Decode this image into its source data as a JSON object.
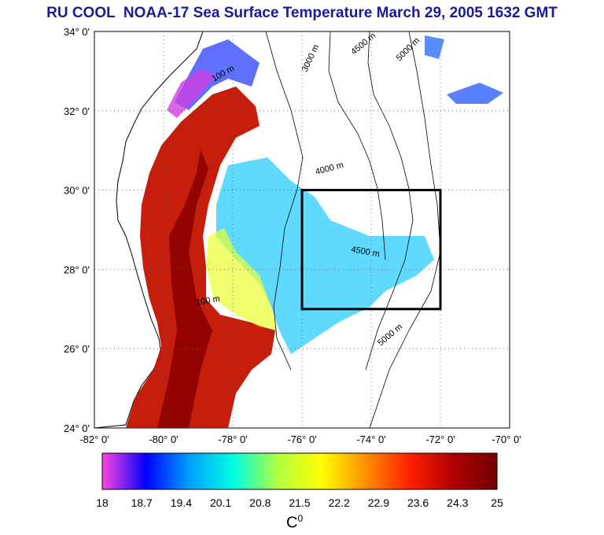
{
  "title": "RU COOL  NOAA-17 Sea Surface Temperature March 29, 2005 1632 GMT",
  "lat_ticks": [
    "34° 0'",
    "32° 0'",
    "30° 0'",
    "28° 0'",
    "26° 0'",
    "24° 0'"
  ],
  "lon_ticks": [
    "-82° 0'",
    "-80° 0'",
    "-78° 0'",
    "-76° 0'",
    "-74° 0'",
    "-72° 0'",
    "-70° 0'"
  ],
  "extent": {
    "lon": [
      -82,
      -70
    ],
    "lat": [
      24,
      34
    ]
  },
  "study_box": {
    "lon": [
      -76,
      -72
    ],
    "lat": [
      27,
      30
    ]
  },
  "contour_labels": [
    "100 m",
    "3000 m",
    "4000 m",
    "4500 m",
    "5000 m"
  ],
  "colorbar": {
    "ticks": [
      "18",
      "18.7",
      "19.4",
      "20.1",
      "20.8",
      "21.5",
      "22.2",
      "22.9",
      "23.6",
      "24.3",
      "25"
    ],
    "range": [
      18,
      25
    ],
    "colors": [
      "#ff44dd",
      "#0000ff",
      "#00a0ff",
      "#00ffe0",
      "#b0ff40",
      "#ffff00",
      "#ff9000",
      "#ff2000",
      "#b00000",
      "#700000"
    ]
  },
  "unit": {
    "base": "C",
    "sup": "0"
  }
}
